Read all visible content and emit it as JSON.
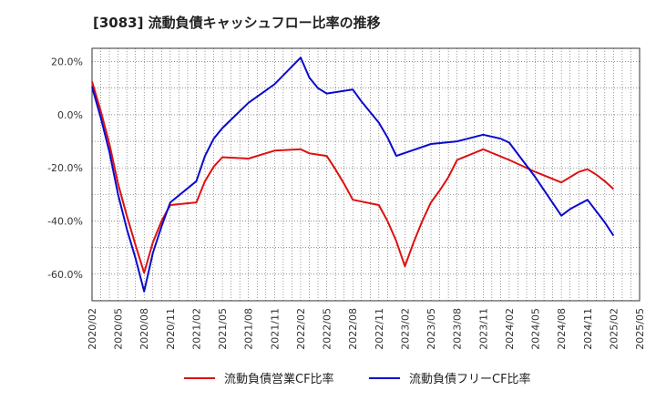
{
  "chart_data": {
    "type": "line",
    "title": "[3083]  流動負債キャッシュフロー比率の推移",
    "ylim": [
      -70,
      25
    ],
    "y_ticks": [
      "20.0%",
      "0.0%",
      "-20.0%",
      "-40.0%",
      "-60.0%"
    ],
    "y_tick_values": [
      20,
      0,
      -20,
      -40,
      -60
    ],
    "x_ticks": [
      "2020/02",
      "2020/05",
      "2020/08",
      "2020/11",
      "2021/02",
      "2021/05",
      "2021/08",
      "2021/11",
      "2022/02",
      "2022/05",
      "2022/08",
      "2022/11",
      "2023/02",
      "2023/05",
      "2023/08",
      "2023/11",
      "2024/02",
      "2024/05",
      "2024/08",
      "2024/11",
      "2025/02",
      "2025/05"
    ],
    "grid": "dotted",
    "legend_position": "bottom",
    "colors": {
      "series1": "#dd1111",
      "series2": "#0a0acc"
    },
    "series": [
      {
        "name": "流動負債営業CF比率",
        "color": "#dd1111",
        "points": [
          [
            "2020/02",
            12.5
          ],
          [
            "2020/03",
            1.5
          ],
          [
            "2020/04",
            -11.0
          ],
          [
            "2020/05",
            -26.0
          ],
          [
            "2020/06",
            -38.0
          ],
          [
            "2020/07",
            -49.0
          ],
          [
            "2020/08",
            -59.5
          ],
          [
            "2020/09",
            -48.0
          ],
          [
            "2020/10",
            -40.0
          ],
          [
            "2020/11",
            -34.0
          ],
          [
            "2021/02",
            -33.0
          ],
          [
            "2021/03",
            -25.0
          ],
          [
            "2021/04",
            -19.5
          ],
          [
            "2021/05",
            -16.0
          ],
          [
            "2021/08",
            -16.5
          ],
          [
            "2021/11",
            -13.5
          ],
          [
            "2022/02",
            -13.0
          ],
          [
            "2022/03",
            -14.5
          ],
          [
            "2022/05",
            -15.5
          ],
          [
            "2022/06",
            -20.5
          ],
          [
            "2022/07",
            -26.0
          ],
          [
            "2022/08",
            -32.0
          ],
          [
            "2022/11",
            -34.0
          ],
          [
            "2022/12",
            -40.0
          ],
          [
            "2023/01",
            -47.5
          ],
          [
            "2023/02",
            -57.0
          ],
          [
            "2023/03",
            -48.0
          ],
          [
            "2023/04",
            -40.0
          ],
          [
            "2023/05",
            -33.0
          ],
          [
            "2023/06",
            -28.5
          ],
          [
            "2023/07",
            -23.5
          ],
          [
            "2023/08",
            -17.0
          ],
          [
            "2023/11",
            -13.0
          ],
          [
            "2024/02",
            -17.0
          ],
          [
            "2024/05",
            -21.5
          ],
          [
            "2024/08",
            -25.5
          ],
          [
            "2024/09",
            -23.5
          ],
          [
            "2024/10",
            -21.5
          ],
          [
            "2024/11",
            -20.5
          ],
          [
            "2024/12",
            -22.5
          ],
          [
            "2025/01",
            -25.0
          ],
          [
            "2025/02",
            -28.0
          ]
        ]
      },
      {
        "name": "流動負債フリーCF比率",
        "color": "#0a0acc",
        "points": [
          [
            "2020/02",
            10.5
          ],
          [
            "2020/03",
            -1.0
          ],
          [
            "2020/04",
            -14.0
          ],
          [
            "2020/05",
            -30.0
          ],
          [
            "2020/06",
            -43.0
          ],
          [
            "2020/07",
            -54.0
          ],
          [
            "2020/08",
            -66.5
          ],
          [
            "2020/09",
            -52.0
          ],
          [
            "2020/10",
            -42.0
          ],
          [
            "2020/11",
            -33.0
          ],
          [
            "2021/02",
            -25.0
          ],
          [
            "2021/03",
            -15.5
          ],
          [
            "2021/04",
            -9.0
          ],
          [
            "2021/05",
            -5.0
          ],
          [
            "2021/08",
            4.5
          ],
          [
            "2021/11",
            11.5
          ],
          [
            "2022/02",
            21.5
          ],
          [
            "2022/03",
            14.0
          ],
          [
            "2022/04",
            10.0
          ],
          [
            "2022/05",
            8.0
          ],
          [
            "2022/08",
            9.5
          ],
          [
            "2022/09",
            5.0
          ],
          [
            "2022/10",
            1.0
          ],
          [
            "2022/11",
            -3.0
          ],
          [
            "2022/12",
            -8.5
          ],
          [
            "2023/01",
            -15.5
          ],
          [
            "2023/05",
            -11.0
          ],
          [
            "2023/08",
            -10.0
          ],
          [
            "2023/11",
            -7.5
          ],
          [
            "2024/01",
            -9.0
          ],
          [
            "2024/02",
            -10.5
          ],
          [
            "2024/05",
            -23.5
          ],
          [
            "2024/08",
            -38.0
          ],
          [
            "2024/09",
            -35.5
          ],
          [
            "2024/11",
            -32.0
          ],
          [
            "2025/01",
            -40.5
          ],
          [
            "2025/02",
            -45.5
          ]
        ]
      }
    ]
  }
}
